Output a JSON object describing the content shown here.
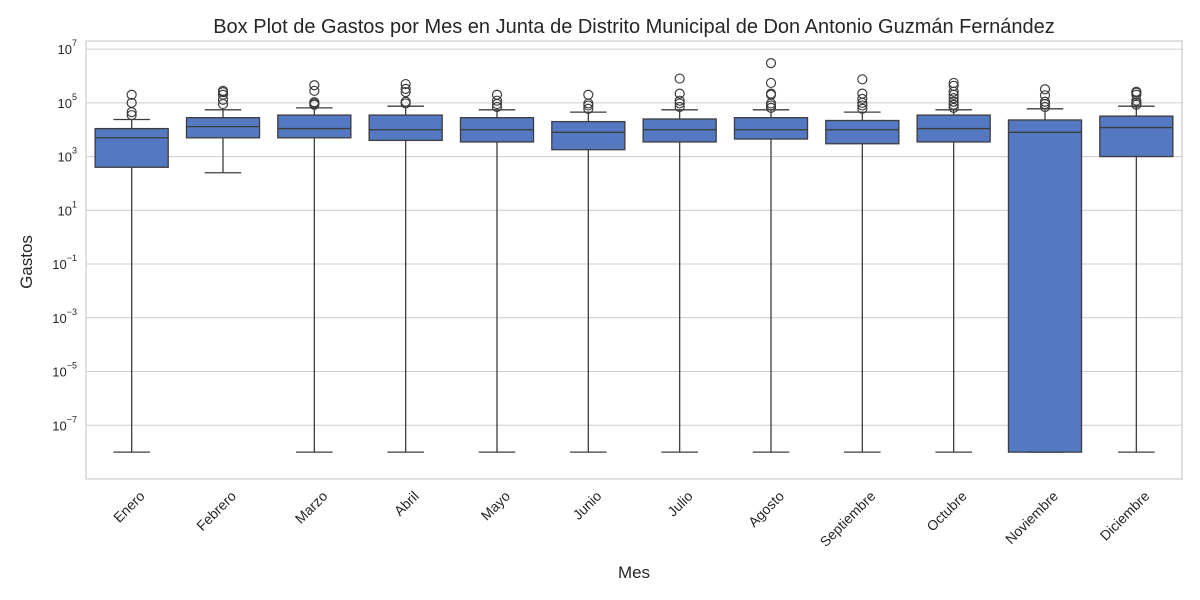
{
  "chart_data": {
    "type": "box",
    "title": "Box Plot de Gastos por Mes en Junta de Distrito Municipal de Don Antonio Guzmán Fernández",
    "xlabel": "Mes",
    "ylabel": "Gastos",
    "yscale": "log",
    "ylim": [
      1e-09,
      20000000.0
    ],
    "yticks": [
      {
        "value": 10000000.0,
        "base": "10",
        "exp": "7"
      },
      {
        "value": 100000.0,
        "base": "10",
        "exp": "5"
      },
      {
        "value": 1000.0,
        "base": "10",
        "exp": "3"
      },
      {
        "value": 10.0,
        "base": "10",
        "exp": "1"
      },
      {
        "value": 0.1,
        "base": "10",
        "exp": "−1"
      },
      {
        "value": 0.001,
        "base": "10",
        "exp": "−3"
      },
      {
        "value": 1e-05,
        "base": "10",
        "exp": "−5"
      },
      {
        "value": 1e-07,
        "base": "10",
        "exp": "−7"
      }
    ],
    "grid": true,
    "color": "#5479c2",
    "edge_color": "#3d3d3d",
    "categories": [
      "Enero",
      "Febrero",
      "Marzo",
      "Abril",
      "Mayo",
      "Junio",
      "Julio",
      "Agosto",
      "Septiembre",
      "Octubre",
      "Noviembre",
      "Diciembre"
    ],
    "boxes": [
      {
        "whislo": 1e-08,
        "q1": 400,
        "med": 5000,
        "q3": 11000,
        "whishi": 24000,
        "fliers": [
          35000,
          45000,
          100000,
          200000
        ]
      },
      {
        "whislo": 250,
        "q1": 5000,
        "med": 13000,
        "q3": 28000,
        "whishi": 55000,
        "fliers": [
          90000,
          130000,
          200000,
          250000,
          280000
        ]
      },
      {
        "whislo": 1e-08,
        "q1": 5000,
        "med": 11000,
        "q3": 35000,
        "whishi": 65000,
        "fliers": [
          85000,
          95000,
          105000,
          280000,
          450000
        ]
      },
      {
        "whislo": 1e-08,
        "q1": 4000,
        "med": 10000,
        "q3": 35000,
        "whishi": 75000,
        "fliers": [
          95000,
          110000,
          250000,
          330000,
          500000
        ]
      },
      {
        "whislo": 1e-08,
        "q1": 3500,
        "med": 10000,
        "q3": 28000,
        "whishi": 55000,
        "fliers": [
          70000,
          90000,
          120000,
          200000
        ]
      },
      {
        "whislo": 1e-08,
        "q1": 1800,
        "med": 8000,
        "q3": 20000,
        "whishi": 45000,
        "fliers": [
          60000,
          80000,
          95000,
          200000
        ]
      },
      {
        "whislo": 1e-08,
        "q1": 3500,
        "med": 10000,
        "q3": 25000,
        "whishi": 55000,
        "fliers": [
          70000,
          95000,
          120000,
          220000,
          800000
        ]
      },
      {
        "whislo": 1e-08,
        "q1": 4500,
        "med": 10000,
        "q3": 28000,
        "whishi": 55000,
        "fliers": [
          65000,
          80000,
          95000,
          200000,
          220000,
          550000,
          3000000
        ]
      },
      {
        "whislo": 1e-08,
        "q1": 3000,
        "med": 10000,
        "q3": 22000,
        "whishi": 45000,
        "fliers": [
          60000,
          80000,
          100000,
          140000,
          220000,
          750000
        ]
      },
      {
        "whislo": 1e-08,
        "q1": 3500,
        "med": 11000,
        "q3": 35000,
        "whishi": 55000,
        "fliers": [
          65000,
          85000,
          110000,
          150000,
          200000,
          260000,
          430000,
          550000
        ]
      },
      {
        "whislo": 1e-08,
        "q1": 1e-08,
        "med": 8000,
        "q3": 23000,
        "whishi": 60000,
        "fliers": [
          70000,
          90000,
          110000,
          190000,
          320000
        ]
      },
      {
        "whislo": 1e-08,
        "q1": 1000,
        "med": 12000,
        "q3": 32000,
        "whishi": 75000,
        "fliers": [
          85000,
          100000,
          120000,
          200000,
          240000,
          260000
        ]
      }
    ]
  }
}
